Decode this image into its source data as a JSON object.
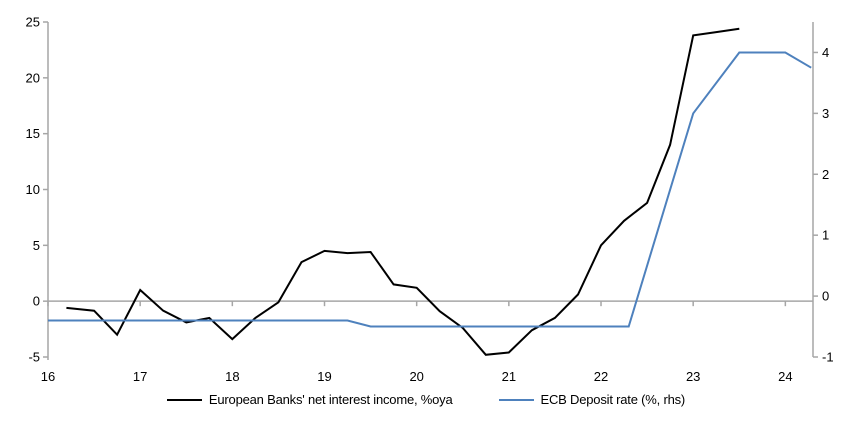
{
  "chart_data": {
    "type": "line",
    "title": "",
    "xlabel": "",
    "ylabel_left": "",
    "ylabel_right": "",
    "grid": "zero-line-only",
    "legend_position": "bottom-center",
    "background_color": "#ffffff",
    "axis_color": "#a6a6a6",
    "x_axis": {
      "ticks": [
        16,
        17,
        18,
        19,
        20,
        21,
        22,
        23,
        24
      ],
      "range": [
        16,
        24.3
      ]
    },
    "left_axis": {
      "ticks": [
        -5,
        0,
        5,
        10,
        15,
        20,
        25
      ],
      "range": [
        -5,
        25
      ]
    },
    "right_axis": {
      "ticks": [
        -1,
        0,
        1,
        2,
        3,
        4
      ],
      "range": [
        -1,
        4.5
      ]
    },
    "series": [
      {
        "name": "European Banks' net interest income, %oya",
        "axis": "left",
        "color": "#000000",
        "line_width": 2,
        "x": [
          16.2,
          16.5,
          16.75,
          17.0,
          17.25,
          17.5,
          17.75,
          18.0,
          18.25,
          18.5,
          18.75,
          19.0,
          19.25,
          19.5,
          19.75,
          20.0,
          20.25,
          20.5,
          20.75,
          21.0,
          21.25,
          21.5,
          21.75,
          22.0,
          22.25,
          22.5,
          22.75,
          23.0,
          23.25,
          23.5
        ],
        "values": [
          -0.6,
          -0.85,
          -3.0,
          1.0,
          -0.85,
          -1.9,
          -1.5,
          -3.4,
          -1.5,
          -0.1,
          3.5,
          4.5,
          4.3,
          4.4,
          1.5,
          1.2,
          -0.9,
          -2.4,
          -4.8,
          -4.6,
          -2.6,
          -1.5,
          0.6,
          5.0,
          7.2,
          8.8,
          14.0,
          23.8,
          24.1,
          24.4
        ]
      },
      {
        "name": "ECB Deposit rate (%, rhs)",
        "axis": "right",
        "color": "#4E81BD",
        "line_width": 2,
        "x": [
          16.0,
          19.25,
          19.5,
          22.3,
          23.0,
          23.5,
          24.0,
          24.28
        ],
        "values": [
          -0.4,
          -0.4,
          -0.5,
          -0.5,
          3.0,
          4.0,
          4.0,
          3.75
        ]
      }
    ]
  }
}
